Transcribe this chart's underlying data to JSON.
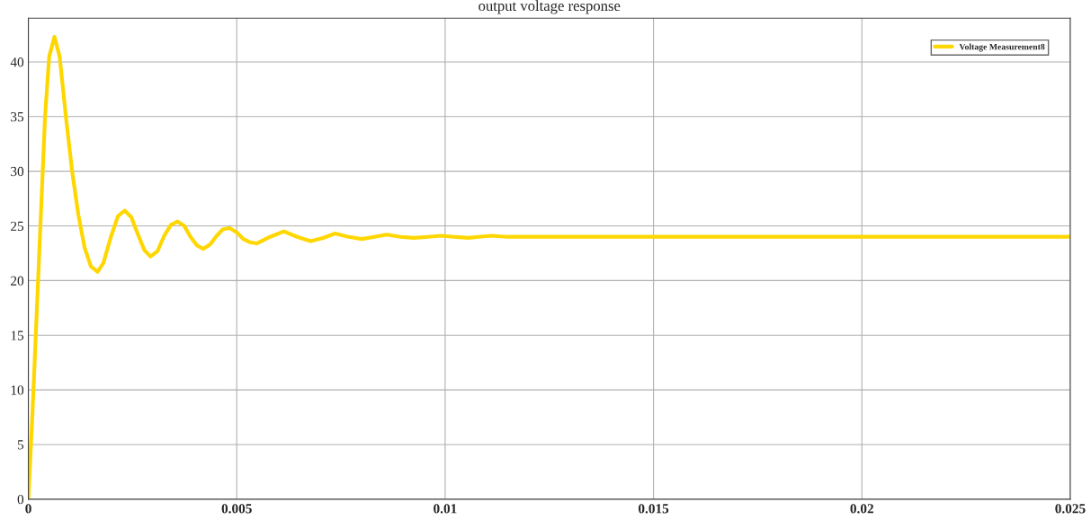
{
  "chart_data": {
    "type": "line",
    "title": "output voltage response",
    "series": [
      {
        "name": "Voltage Measurement8",
        "color": "#ffd700",
        "x": [
          0,
          0.0001,
          0.0002,
          0.0003,
          0.0004,
          0.0005,
          0.000626,
          0.00075,
          0.0009,
          0.00105,
          0.0012,
          0.00135,
          0.0015,
          0.00166,
          0.0018,
          0.00198,
          0.00215,
          0.00231,
          0.00247,
          0.00262,
          0.00278,
          0.00293,
          0.0031,
          0.00326,
          0.00342,
          0.00358,
          0.00374,
          0.00389,
          0.00405,
          0.0042,
          0.00436,
          0.00452,
          0.00467,
          0.00483,
          0.005,
          0.00516,
          0.00532,
          0.00548,
          0.0058,
          0.00613,
          0.00645,
          0.00677,
          0.00707,
          0.00736,
          0.00768,
          0.008,
          0.0083,
          0.0086,
          0.00893,
          0.00925,
          0.00958,
          0.0099,
          0.01023,
          0.01055,
          0.0108,
          0.0111,
          0.0115,
          0.012,
          0.0125,
          0.013,
          0.014,
          0.016,
          0.018,
          0.02,
          0.022,
          0.025
        ],
        "values": [
          0,
          8,
          17,
          26,
          35,
          40.5,
          42.3,
          40.5,
          35,
          30,
          26,
          23,
          21.3,
          20.8,
          21.6,
          24,
          25.9,
          26.4,
          25.8,
          24.3,
          22.8,
          22.2,
          22.7,
          24.1,
          25.1,
          25.4,
          25,
          24,
          23.2,
          22.9,
          23.3,
          24.1,
          24.7,
          24.8,
          24.4,
          23.8,
          23.5,
          23.4,
          24,
          24.5,
          24,
          23.6,
          23.9,
          24.3,
          24,
          23.8,
          24,
          24.2,
          24,
          23.9,
          24,
          24.1,
          24,
          23.9,
          24,
          24.1,
          24,
          24,
          24,
          24,
          24,
          24,
          24,
          24,
          24,
          24
        ]
      }
    ],
    "xlim": [
      0,
      0.025
    ],
    "xticks": [
      0,
      0.005,
      0.01,
      0.015,
      0.02,
      0.025
    ],
    "ylim": [
      0,
      44
    ],
    "yticks": [
      0,
      5,
      10,
      15,
      20,
      25,
      30,
      35,
      40
    ],
    "grid": true,
    "legend": "top right",
    "line_style": "solid",
    "marker": "none"
  }
}
